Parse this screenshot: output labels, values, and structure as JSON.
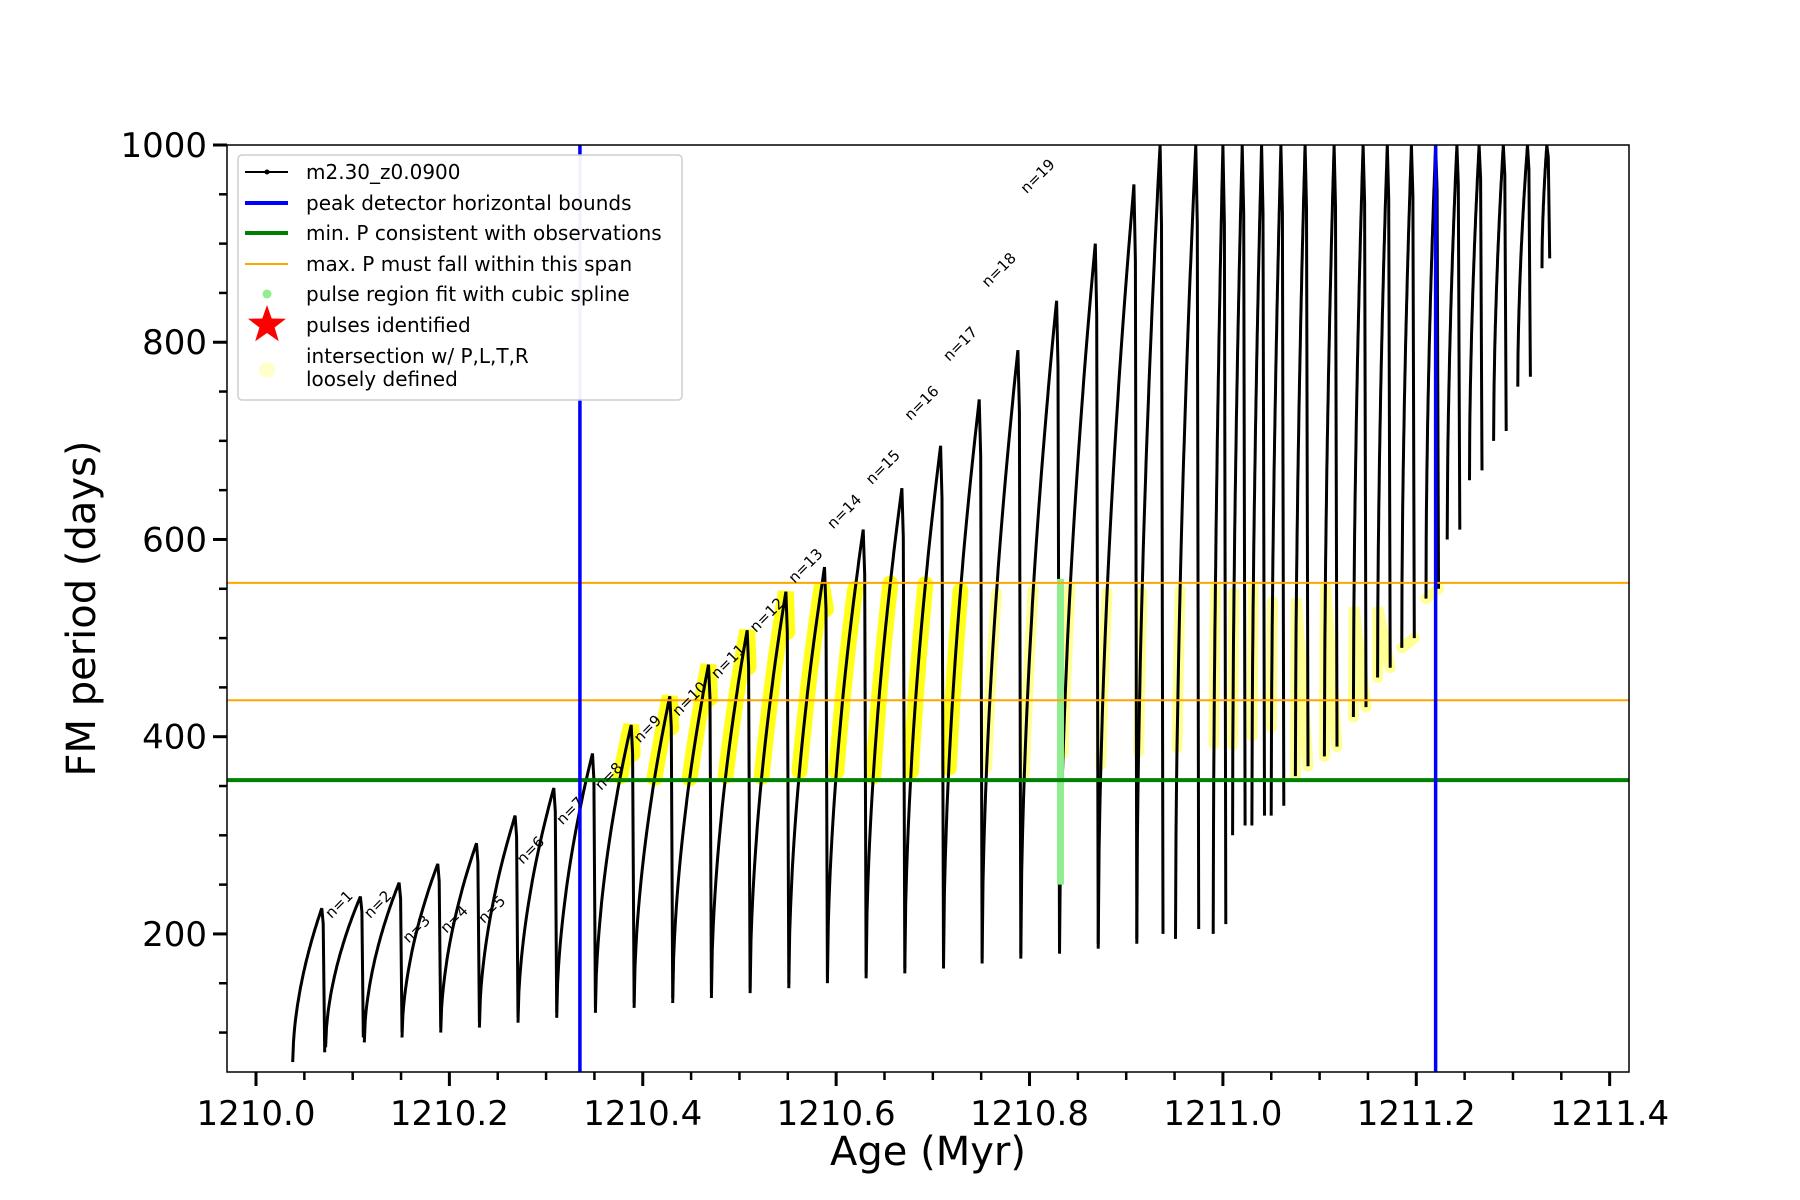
{
  "chart_data": {
    "type": "line",
    "xlabel": "Age (Myr)",
    "ylabel": "FM period (days)",
    "xlim": [
      1209.97,
      1211.42
    ],
    "ylim": [
      60,
      1000
    ],
    "xticks": [
      "1210.0",
      "1210.2",
      "1210.4",
      "1210.6",
      "1210.8",
      "1211.0",
      "1211.2",
      "1211.4"
    ],
    "xtick_values": [
      1210.0,
      1210.2,
      1210.4,
      1210.6,
      1210.8,
      1211.0,
      1211.2,
      1211.4
    ],
    "yticks": [
      "200",
      "400",
      "600",
      "800",
      "1000"
    ],
    "ytick_values": [
      200,
      400,
      600,
      800,
      1000
    ],
    "grid": false,
    "legend_position": "top-left",
    "legend": [
      {
        "label": "m2.30_z0.0900",
        "color": "#000000",
        "marker": "line-dot"
      },
      {
        "label": "peak detector horizontal bounds",
        "color": "#0000ff",
        "marker": "line"
      },
      {
        "label": "min. P consistent with observations",
        "color": "#008000",
        "marker": "line"
      },
      {
        "label": "max. P must fall within this span",
        "color": "#ffa500",
        "marker": "line"
      },
      {
        "label": "pulse region fit with cubic spline",
        "color": "#90ee90",
        "marker": "dot"
      },
      {
        "label": "pulses identified",
        "color": "#ff0000",
        "marker": "star"
      },
      {
        "label": "intersection w/ P,L,T,R",
        "label2": "loosely defined",
        "color": "#ffffcc",
        "marker": "circle"
      }
    ],
    "reference_lines": {
      "peak_bounds_x": [
        1210.335,
        1211.22
      ],
      "min_P": 356,
      "max_P_span": [
        437,
        556
      ]
    },
    "series": [
      {
        "name": "m2.30_z0.0900",
        "cycles": [
          [
            1210.038,
            70,
            1210.068,
            226
          ],
          [
            1210.072,
            85,
            1210.108,
            238
          ],
          [
            1210.112,
            90,
            1210.148,
            252
          ],
          [
            1210.151,
            95,
            1210.188,
            271
          ],
          [
            1210.191,
            100,
            1210.228,
            292
          ],
          [
            1210.231,
            105,
            1210.268,
            320
          ],
          [
            1210.271,
            110,
            1210.308,
            348
          ],
          [
            1210.311,
            115,
            1210.348,
            383
          ],
          [
            1210.351,
            120,
            1210.388,
            412
          ],
          [
            1210.391,
            125,
            1210.428,
            441
          ],
          [
            1210.431,
            130,
            1210.468,
            473
          ],
          [
            1210.471,
            135,
            1210.508,
            508
          ],
          [
            1210.511,
            140,
            1210.548,
            547
          ],
          [
            1210.551,
            145,
            1210.588,
            572
          ],
          [
            1210.591,
            150,
            1210.628,
            610
          ],
          [
            1210.631,
            155,
            1210.668,
            652
          ],
          [
            1210.671,
            160,
            1210.708,
            695
          ],
          [
            1210.711,
            165,
            1210.748,
            742
          ],
          [
            1210.751,
            170,
            1210.788,
            792
          ],
          [
            1210.791,
            175,
            1210.828,
            842
          ],
          [
            1210.831,
            180,
            1210.868,
            900
          ],
          [
            1210.871,
            185,
            1210.908,
            960
          ],
          [
            1210.911,
            190,
            1210.935,
            1000
          ],
          [
            1210.951,
            195,
            1210.972,
            1000
          ],
          [
            1210.99,
            200,
            1211.0,
            1000
          ],
          [
            1211.01,
            300,
            1211.02,
            1000
          ],
          [
            1211.03,
            310,
            1211.04,
            1000
          ],
          [
            1211.05,
            320,
            1211.06,
            1000
          ],
          [
            1211.075,
            360,
            1211.085,
            1000
          ],
          [
            1211.105,
            380,
            1211.115,
            1000
          ],
          [
            1211.135,
            420,
            1211.145,
            1000
          ],
          [
            1211.16,
            460,
            1211.17,
            1000
          ],
          [
            1211.185,
            490,
            1211.195,
            1000
          ],
          [
            1211.21,
            540,
            1211.22,
            1000
          ],
          [
            1211.232,
            600,
            1211.242,
            1000
          ],
          [
            1211.255,
            660,
            1211.265,
            1000
          ],
          [
            1211.28,
            700,
            1211.29,
            1000
          ],
          [
            1211.305,
            755,
            1211.315,
            1000
          ],
          [
            1211.33,
            875,
            1211.335,
            1000
          ]
        ]
      }
    ],
    "pulse_labels": [
      {
        "text": "n=1",
        "x": 1210.078,
        "y": 215
      },
      {
        "text": "n=2",
        "x": 1210.118,
        "y": 215
      },
      {
        "text": "n=3",
        "x": 1210.158,
        "y": 190
      },
      {
        "text": "n=4",
        "x": 1210.197,
        "y": 200
      },
      {
        "text": "n=5",
        "x": 1210.236,
        "y": 210
      },
      {
        "text": "n=6",
        "x": 1210.276,
        "y": 270
      },
      {
        "text": "n=7",
        "x": 1210.317,
        "y": 310
      },
      {
        "text": "n=8",
        "x": 1210.357,
        "y": 345
      },
      {
        "text": "n=9",
        "x": 1210.397,
        "y": 393
      },
      {
        "text": "n=10",
        "x": 1210.437,
        "y": 420
      },
      {
        "text": "n=11",
        "x": 1210.477,
        "y": 458
      },
      {
        "text": "n=12",
        "x": 1210.517,
        "y": 505
      },
      {
        "text": "n=13",
        "x": 1210.557,
        "y": 555
      },
      {
        "text": "n=14",
        "x": 1210.597,
        "y": 610
      },
      {
        "text": "n=15",
        "x": 1210.637,
        "y": 655
      },
      {
        "text": "n=16",
        "x": 1210.677,
        "y": 720
      },
      {
        "text": "n=17",
        "x": 1210.717,
        "y": 780
      },
      {
        "text": "n=18",
        "x": 1210.757,
        "y": 855
      },
      {
        "text": "n=19",
        "x": 1210.797,
        "y": 950
      }
    ],
    "spline_region": {
      "x": 1210.832,
      "y_range": [
        250,
        560
      ]
    }
  }
}
